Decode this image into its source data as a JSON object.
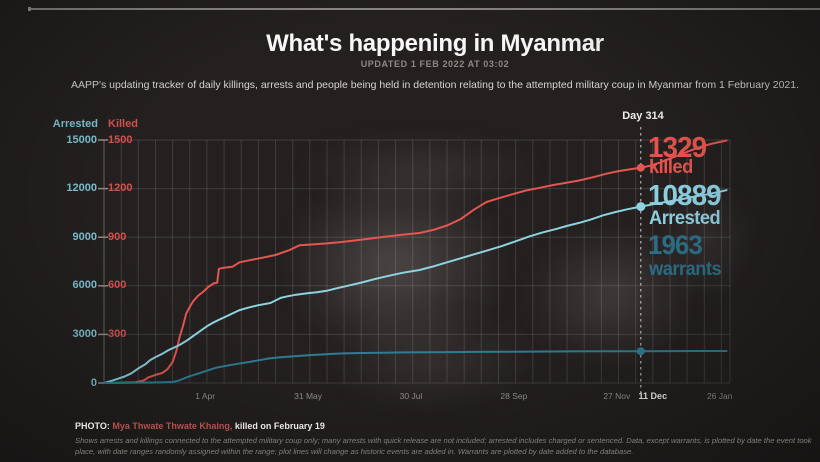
{
  "header": {
    "title": "What's happening in Myanmar",
    "updated": "UPDATED 1 FEB 2022 AT 03:02",
    "description": "AAPP's updating tracker of daily killings, arrests and people being held in detention relating to the attempted military coup in Myanmar from 1 February 2021."
  },
  "axes": {
    "arrested_label": "Arrested",
    "killed_label": "Killed",
    "arrested_ticks": [
      "15000",
      "12000",
      "9000",
      "6000",
      "3000",
      "0"
    ],
    "killed_ticks": [
      "1500",
      "1200",
      "900",
      "600",
      "300"
    ]
  },
  "annotations": {
    "day_marker": "Day 314",
    "killed_value": "1329",
    "killed_word": "killed",
    "arrested_value": "10889",
    "arrested_word": "Arrested",
    "warrants_value": "1963",
    "warrants_word": "warrants"
  },
  "footer": {
    "photo_prefix": "PHOTO: ",
    "photo_name": "Mya Thwate Thwate Khaing,",
    "photo_suffix": " killed on February 19",
    "fine_print": "Shows arrests and killings connected to the attempted military coup only; many arrests with quick release are not included; arrested includes charged or sentenced. Data, except warrants, is plotted by date the event took place, with date ranges randomly assigned within the range; plot lines will change as historic events are added in. Warrants are plotted by date added to the database."
  },
  "colors": {
    "killed": "#e4564f",
    "arrested": "#8fd2e0",
    "warrants": "#2e7d94",
    "grid": "rgba(255,255,255,0.13)",
    "axis": "rgba(255,255,255,0.30)",
    "tick_dash": "#938c8a",
    "marker_line": "rgba(240,240,240,0.85)"
  },
  "chart_data": {
    "type": "line",
    "title": "What's happening in Myanmar",
    "x_unit": "days since 1 Feb 2021",
    "x_range": [
      0,
      365
    ],
    "left_axis": {
      "label": "Arrested",
      "range": [
        0,
        15000
      ],
      "tick_step": 3000
    },
    "right_axis": {
      "label": "Killed",
      "range": [
        0,
        1500
      ],
      "tick_step": 300
    },
    "grid": "on",
    "marker_day": 313,
    "marker_label": "Day 314",
    "x_ticks": [
      {
        "label": "1 Apr",
        "day": 59,
        "bold": false,
        "dx": 0
      },
      {
        "label": "31 May",
        "day": 119,
        "bold": false,
        "dx": 0
      },
      {
        "label": "30 Jul",
        "day": 179,
        "bold": false,
        "dx": 0
      },
      {
        "label": "28 Sep",
        "day": 239,
        "bold": false,
        "dx": 0
      },
      {
        "label": "27 Nov",
        "day": 299,
        "bold": false,
        "dx": 0
      },
      {
        "label": "11 Dec",
        "day": 313,
        "bold": true,
        "dx": 12
      },
      {
        "label": "26 Jan",
        "day": 359,
        "bold": false,
        "dx": 0
      }
    ],
    "series": [
      {
        "name": "Killed",
        "axis": "killed",
        "color": "#e4564f",
        "value_at_marker": 1329,
        "points": [
          [
            0,
            0
          ],
          [
            8,
            2
          ],
          [
            18,
            5
          ],
          [
            23,
            15
          ],
          [
            26,
            35
          ],
          [
            30,
            50
          ],
          [
            34,
            62
          ],
          [
            37,
            85
          ],
          [
            40,
            130
          ],
          [
            42,
            190
          ],
          [
            44,
            280
          ],
          [
            46,
            350
          ],
          [
            48,
            430
          ],
          [
            50,
            470
          ],
          [
            52,
            505
          ],
          [
            55,
            540
          ],
          [
            58,
            565
          ],
          [
            61,
            595
          ],
          [
            64,
            615
          ],
          [
            66,
            620
          ],
          [
            67,
            705
          ],
          [
            70,
            712
          ],
          [
            75,
            718
          ],
          [
            79,
            745
          ],
          [
            85,
            758
          ],
          [
            92,
            772
          ],
          [
            100,
            790
          ],
          [
            108,
            820
          ],
          [
            114,
            850
          ],
          [
            121,
            855
          ],
          [
            130,
            862
          ],
          [
            138,
            870
          ],
          [
            148,
            882
          ],
          [
            158,
            895
          ],
          [
            168,
            908
          ],
          [
            178,
            920
          ],
          [
            184,
            926
          ],
          [
            192,
            945
          ],
          [
            200,
            972
          ],
          [
            208,
            1012
          ],
          [
            216,
            1072
          ],
          [
            223,
            1117
          ],
          [
            230,
            1140
          ],
          [
            238,
            1165
          ],
          [
            246,
            1188
          ],
          [
            254,
            1205
          ],
          [
            262,
            1222
          ],
          [
            270,
            1237
          ],
          [
            277,
            1250
          ],
          [
            285,
            1270
          ],
          [
            293,
            1292
          ],
          [
            300,
            1308
          ],
          [
            306,
            1318
          ],
          [
            313,
            1329
          ],
          [
            318,
            1340
          ],
          [
            324,
            1360
          ],
          [
            330,
            1385
          ],
          [
            336,
            1410
          ],
          [
            342,
            1435
          ],
          [
            348,
            1458
          ],
          [
            354,
            1476
          ],
          [
            363,
            1497
          ]
        ]
      },
      {
        "name": "Arrested",
        "axis": "arrested",
        "color": "#8fd2e0",
        "value_at_marker": 10889,
        "points": [
          [
            0,
            0
          ],
          [
            4,
            120
          ],
          [
            8,
            260
          ],
          [
            12,
            400
          ],
          [
            16,
            600
          ],
          [
            20,
            900
          ],
          [
            24,
            1150
          ],
          [
            27,
            1420
          ],
          [
            30,
            1600
          ],
          [
            34,
            1800
          ],
          [
            38,
            2050
          ],
          [
            44,
            2345
          ],
          [
            48,
            2600
          ],
          [
            52,
            2900
          ],
          [
            56,
            3200
          ],
          [
            60,
            3500
          ],
          [
            64,
            3750
          ],
          [
            68,
            3950
          ],
          [
            73,
            4200
          ],
          [
            79,
            4500
          ],
          [
            84,
            4650
          ],
          [
            90,
            4800
          ],
          [
            97,
            4940
          ],
          [
            101,
            5150
          ],
          [
            103,
            5250
          ],
          [
            107,
            5350
          ],
          [
            112,
            5450
          ],
          [
            118,
            5530
          ],
          [
            124,
            5600
          ],
          [
            130,
            5700
          ],
          [
            136,
            5850
          ],
          [
            142,
            6000
          ],
          [
            150,
            6200
          ],
          [
            158,
            6420
          ],
          [
            166,
            6620
          ],
          [
            174,
            6800
          ],
          [
            184,
            6975
          ],
          [
            192,
            7200
          ],
          [
            200,
            7450
          ],
          [
            208,
            7700
          ],
          [
            216,
            7950
          ],
          [
            224,
            8200
          ],
          [
            232,
            8450
          ],
          [
            240,
            8750
          ],
          [
            248,
            9050
          ],
          [
            256,
            9300
          ],
          [
            264,
            9520
          ],
          [
            270,
            9700
          ],
          [
            277,
            9880
          ],
          [
            284,
            10100
          ],
          [
            291,
            10350
          ],
          [
            298,
            10550
          ],
          [
            305,
            10720
          ],
          [
            313,
            10889
          ],
          [
            320,
            11030
          ],
          [
            328,
            11180
          ],
          [
            336,
            11330
          ],
          [
            344,
            11500
          ],
          [
            352,
            11650
          ],
          [
            363,
            11900
          ]
        ]
      },
      {
        "name": "Warrants",
        "axis": "arrested",
        "color": "#2e7d94",
        "value_at_marker": 1963,
        "points": [
          [
            0,
            0
          ],
          [
            15,
            15
          ],
          [
            30,
            30
          ],
          [
            40,
            60
          ],
          [
            43,
            130
          ],
          [
            46,
            250
          ],
          [
            49,
            380
          ],
          [
            52,
            480
          ],
          [
            56,
            620
          ],
          [
            60,
            760
          ],
          [
            65,
            930
          ],
          [
            70,
            1040
          ],
          [
            75,
            1130
          ],
          [
            80,
            1220
          ],
          [
            85,
            1300
          ],
          [
            90,
            1400
          ],
          [
            96,
            1510
          ],
          [
            102,
            1580
          ],
          [
            108,
            1630
          ],
          [
            114,
            1670
          ],
          [
            120,
            1720
          ],
          [
            127,
            1760
          ],
          [
            133,
            1795
          ],
          [
            140,
            1825
          ],
          [
            150,
            1850
          ],
          [
            162,
            1872
          ],
          [
            175,
            1888
          ],
          [
            190,
            1902
          ],
          [
            210,
            1915
          ],
          [
            230,
            1925
          ],
          [
            250,
            1938
          ],
          [
            270,
            1948
          ],
          [
            290,
            1955
          ],
          [
            313,
            1963
          ],
          [
            330,
            1970
          ],
          [
            345,
            1973
          ],
          [
            363,
            1977
          ]
        ]
      }
    ]
  }
}
